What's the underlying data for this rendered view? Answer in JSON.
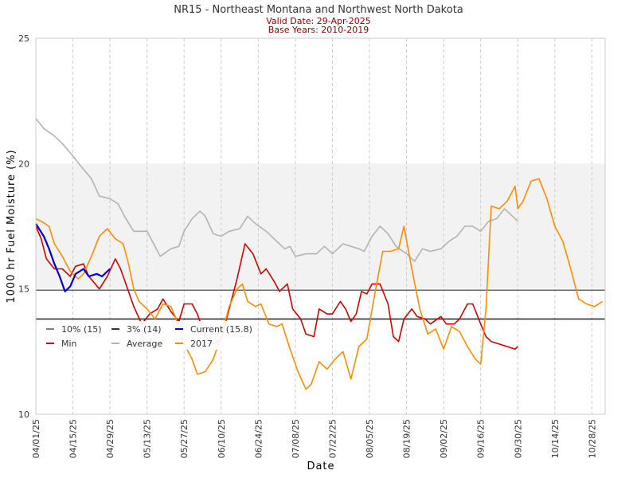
{
  "chart_data": {
    "type": "line",
    "title": "NR15 - Northeast Montana and Northwest North Dakota",
    "subtitle_valid": "Valid Date: 29-Apr-2025",
    "subtitle_base": "Base Years: 2010-2019",
    "xlabel": "Date",
    "ylabel": "1000 hr Fuel Moisture (%)",
    "ylim": [
      10,
      25
    ],
    "yticks": [
      "10",
      "15",
      "20",
      "25"
    ],
    "xlim": [
      "2025-04-01",
      "2025-11-02"
    ],
    "xticks": [
      "04/01/25",
      "04/15/25",
      "04/29/25",
      "05/13/25",
      "05/27/25",
      "06/10/25",
      "06/24/25",
      "07/08/25",
      "07/22/25",
      "08/05/25",
      "08/19/25",
      "09/02/25",
      "09/16/25",
      "09/30/25",
      "10/14/25",
      "10/28/25"
    ],
    "band": [
      15,
      20
    ],
    "band_color": "#f2f2f2",
    "reference_lines": [
      {
        "name": "10% (15)",
        "value": 14.95,
        "color": "#666666"
      },
      {
        "name": "3% (14)",
        "value": 13.8,
        "color": "#333333"
      }
    ],
    "legend": [
      {
        "name": "10% (15)",
        "color": "#808080"
      },
      {
        "name": "3% (14)",
        "color": "#333333"
      },
      {
        "name": "Current (15.8)",
        "color": "#0000cc"
      },
      {
        "name": "Min",
        "color": "#cc0000"
      },
      {
        "name": "Average",
        "color": "#b3b3b3"
      },
      {
        "name": "2017",
        "color": "#ff8c00"
      }
    ],
    "series": [
      {
        "name": "Average",
        "color": "#b3b3b3",
        "points": [
          [
            "2025-04-01",
            21.8
          ],
          [
            "2025-04-04",
            21.4
          ],
          [
            "2025-04-08",
            21.1
          ],
          [
            "2025-04-11",
            20.8
          ],
          [
            "2025-04-15",
            20.3
          ],
          [
            "2025-04-18",
            19.9
          ],
          [
            "2025-04-22",
            19.4
          ],
          [
            "2025-04-25",
            18.7
          ],
          [
            "2025-04-29",
            18.6
          ],
          [
            "2025-05-02",
            18.4
          ],
          [
            "2025-05-05",
            17.8
          ],
          [
            "2025-05-08",
            17.3
          ],
          [
            "2025-05-13",
            17.3
          ],
          [
            "2025-05-15",
            16.9
          ],
          [
            "2025-05-18",
            16.3
          ],
          [
            "2025-05-22",
            16.6
          ],
          [
            "2025-05-25",
            16.7
          ],
          [
            "2025-05-27",
            17.3
          ],
          [
            "2025-05-30",
            17.8
          ],
          [
            "2025-06-02",
            18.1
          ],
          [
            "2025-06-04",
            17.9
          ],
          [
            "2025-06-07",
            17.2
          ],
          [
            "2025-06-10",
            17.1
          ],
          [
            "2025-06-13",
            17.3
          ],
          [
            "2025-06-17",
            17.4
          ],
          [
            "2025-06-20",
            17.9
          ],
          [
            "2025-06-23",
            17.6
          ],
          [
            "2025-06-27",
            17.3
          ],
          [
            "2025-07-01",
            16.9
          ],
          [
            "2025-07-04",
            16.6
          ],
          [
            "2025-07-06",
            16.7
          ],
          [
            "2025-07-08",
            16.3
          ],
          [
            "2025-07-12",
            16.4
          ],
          [
            "2025-07-16",
            16.4
          ],
          [
            "2025-07-19",
            16.7
          ],
          [
            "2025-07-22",
            16.4
          ],
          [
            "2025-07-26",
            16.8
          ],
          [
            "2025-07-29",
            16.7
          ],
          [
            "2025-08-01",
            16.6
          ],
          [
            "2025-08-03",
            16.5
          ],
          [
            "2025-08-06",
            17.1
          ],
          [
            "2025-08-09",
            17.5
          ],
          [
            "2025-08-12",
            17.2
          ],
          [
            "2025-08-15",
            16.7
          ],
          [
            "2025-08-19",
            16.4
          ],
          [
            "2025-08-22",
            16.1
          ],
          [
            "2025-08-25",
            16.6
          ],
          [
            "2025-08-28",
            16.5
          ],
          [
            "2025-09-01",
            16.6
          ],
          [
            "2025-09-04",
            16.9
          ],
          [
            "2025-09-07",
            17.1
          ],
          [
            "2025-09-10",
            17.5
          ],
          [
            "2025-09-13",
            17.5
          ],
          [
            "2025-09-16",
            17.3
          ],
          [
            "2025-09-19",
            17.7
          ],
          [
            "2025-09-22",
            17.8
          ],
          [
            "2025-09-25",
            18.2
          ],
          [
            "2025-09-28",
            17.9
          ],
          [
            "2025-09-30",
            17.7
          ]
        ]
      },
      {
        "name": "Min",
        "color": "#cc0000",
        "points": [
          [
            "2025-04-01",
            17.5
          ],
          [
            "2025-04-03",
            17.0
          ],
          [
            "2025-04-05",
            16.2
          ],
          [
            "2025-04-08",
            15.8
          ],
          [
            "2025-04-11",
            15.8
          ],
          [
            "2025-04-14",
            15.5
          ],
          [
            "2025-04-16",
            15.9
          ],
          [
            "2025-04-19",
            16.0
          ],
          [
            "2025-04-21",
            15.5
          ],
          [
            "2025-04-25",
            15.0
          ],
          [
            "2025-04-28",
            15.5
          ],
          [
            "2025-05-01",
            16.2
          ],
          [
            "2025-05-03",
            15.8
          ],
          [
            "2025-05-05",
            15.2
          ],
          [
            "2025-05-08",
            14.3
          ],
          [
            "2025-05-11",
            13.6
          ],
          [
            "2025-05-14",
            14.0
          ],
          [
            "2025-05-17",
            14.2
          ],
          [
            "2025-05-19",
            14.6
          ],
          [
            "2025-05-22",
            14.1
          ],
          [
            "2025-05-25",
            13.7
          ],
          [
            "2025-05-27",
            14.4
          ],
          [
            "2025-05-30",
            14.4
          ],
          [
            "2025-06-01",
            14.0
          ],
          [
            "2025-06-04",
            13.1
          ],
          [
            "2025-06-07",
            12.8
          ],
          [
            "2025-06-10",
            13.0
          ],
          [
            "2025-06-13",
            14.2
          ],
          [
            "2025-06-16",
            15.4
          ],
          [
            "2025-06-19",
            16.8
          ],
          [
            "2025-06-22",
            16.4
          ],
          [
            "2025-06-25",
            15.6
          ],
          [
            "2025-06-27",
            15.8
          ],
          [
            "2025-06-30",
            15.3
          ],
          [
            "2025-07-02",
            14.9
          ],
          [
            "2025-07-05",
            15.2
          ],
          [
            "2025-07-07",
            14.2
          ],
          [
            "2025-07-10",
            13.8
          ],
          [
            "2025-07-12",
            13.2
          ],
          [
            "2025-07-15",
            13.1
          ],
          [
            "2025-07-17",
            14.2
          ],
          [
            "2025-07-20",
            14.0
          ],
          [
            "2025-07-22",
            14.0
          ],
          [
            "2025-07-25",
            14.5
          ],
          [
            "2025-07-27",
            14.2
          ],
          [
            "2025-07-29",
            13.7
          ],
          [
            "2025-07-31",
            14.0
          ],
          [
            "2025-08-02",
            14.9
          ],
          [
            "2025-08-04",
            14.8
          ],
          [
            "2025-08-06",
            15.2
          ],
          [
            "2025-08-09",
            15.2
          ],
          [
            "2025-08-12",
            14.4
          ],
          [
            "2025-08-14",
            13.1
          ],
          [
            "2025-08-16",
            12.9
          ],
          [
            "2025-08-18",
            13.8
          ],
          [
            "2025-08-21",
            14.2
          ],
          [
            "2025-08-23",
            13.9
          ],
          [
            "2025-08-26",
            13.8
          ],
          [
            "2025-08-28",
            13.6
          ],
          [
            "2025-09-01",
            13.9
          ],
          [
            "2025-09-03",
            13.6
          ],
          [
            "2025-09-06",
            13.6
          ],
          [
            "2025-09-08",
            13.8
          ],
          [
            "2025-09-11",
            14.4
          ],
          [
            "2025-09-13",
            14.4
          ],
          [
            "2025-09-16",
            13.6
          ],
          [
            "2025-09-18",
            13.1
          ],
          [
            "2025-09-20",
            12.9
          ],
          [
            "2025-09-23",
            12.8
          ],
          [
            "2025-09-26",
            12.7
          ],
          [
            "2025-09-29",
            12.6
          ],
          [
            "2025-09-30",
            12.7
          ]
        ]
      },
      {
        "name": "2017",
        "color": "#ff8c00",
        "points": [
          [
            "2025-04-01",
            17.8
          ],
          [
            "2025-04-03",
            17.7
          ],
          [
            "2025-04-06",
            17.5
          ],
          [
            "2025-04-08",
            16.8
          ],
          [
            "2025-04-11",
            16.3
          ],
          [
            "2025-04-14",
            15.7
          ],
          [
            "2025-04-17",
            15.4
          ],
          [
            "2025-04-19",
            15.6
          ],
          [
            "2025-04-22",
            16.3
          ],
          [
            "2025-04-25",
            17.1
          ],
          [
            "2025-04-28",
            17.4
          ],
          [
            "2025-05-01",
            17.0
          ],
          [
            "2025-05-04",
            16.8
          ],
          [
            "2025-05-06",
            16.0
          ],
          [
            "2025-05-08",
            15.0
          ],
          [
            "2025-05-10",
            14.5
          ],
          [
            "2025-05-13",
            14.2
          ],
          [
            "2025-05-16",
            13.8
          ],
          [
            "2025-05-19",
            14.4
          ],
          [
            "2025-05-22",
            14.3
          ],
          [
            "2025-05-24",
            13.8
          ],
          [
            "2025-05-27",
            12.8
          ],
          [
            "2025-05-30",
            12.2
          ],
          [
            "2025-06-01",
            11.6
          ],
          [
            "2025-06-04",
            11.7
          ],
          [
            "2025-06-07",
            12.2
          ],
          [
            "2025-06-10",
            13.1
          ],
          [
            "2025-06-13",
            14.3
          ],
          [
            "2025-06-16",
            15.0
          ],
          [
            "2025-06-18",
            15.2
          ],
          [
            "2025-06-20",
            14.5
          ],
          [
            "2025-06-23",
            14.3
          ],
          [
            "2025-06-25",
            14.4
          ],
          [
            "2025-06-28",
            13.6
          ],
          [
            "2025-07-01",
            13.5
          ],
          [
            "2025-07-03",
            13.6
          ],
          [
            "2025-07-06",
            12.6
          ],
          [
            "2025-07-09",
            11.7
          ],
          [
            "2025-07-12",
            11.0
          ],
          [
            "2025-07-14",
            11.2
          ],
          [
            "2025-07-17",
            12.1
          ],
          [
            "2025-07-20",
            11.8
          ],
          [
            "2025-07-23",
            12.2
          ],
          [
            "2025-07-26",
            12.5
          ],
          [
            "2025-07-29",
            11.4
          ],
          [
            "2025-08-01",
            12.7
          ],
          [
            "2025-08-04",
            13.0
          ],
          [
            "2025-08-07",
            14.8
          ],
          [
            "2025-08-10",
            16.5
          ],
          [
            "2025-08-13",
            16.5
          ],
          [
            "2025-08-16",
            16.6
          ],
          [
            "2025-08-18",
            17.5
          ],
          [
            "2025-08-21",
            15.8
          ],
          [
            "2025-08-24",
            14.2
          ],
          [
            "2025-08-27",
            13.2
          ],
          [
            "2025-08-30",
            13.4
          ],
          [
            "2025-09-02",
            12.6
          ],
          [
            "2025-09-05",
            13.5
          ],
          [
            "2025-09-08",
            13.3
          ],
          [
            "2025-09-11",
            12.7
          ],
          [
            "2025-09-14",
            12.2
          ],
          [
            "2025-09-16",
            12.0
          ],
          [
            "2025-09-18",
            14.2
          ],
          [
            "2025-09-20",
            18.3
          ],
          [
            "2025-09-23",
            18.2
          ],
          [
            "2025-09-26",
            18.5
          ],
          [
            "2025-09-29",
            19.1
          ],
          [
            "2025-09-30",
            18.2
          ],
          [
            "2025-10-02",
            18.5
          ],
          [
            "2025-10-05",
            19.3
          ],
          [
            "2025-10-08",
            19.4
          ],
          [
            "2025-10-11",
            18.6
          ],
          [
            "2025-10-14",
            17.5
          ],
          [
            "2025-10-17",
            16.9
          ],
          [
            "2025-10-20",
            15.8
          ],
          [
            "2025-10-23",
            14.6
          ],
          [
            "2025-10-26",
            14.4
          ],
          [
            "2025-10-29",
            14.3
          ],
          [
            "2025-11-01",
            14.5
          ]
        ]
      },
      {
        "name": "Current (15.8)",
        "color": "#0000cc",
        "points": [
          [
            "2025-04-01",
            17.6
          ],
          [
            "2025-04-04",
            17.1
          ],
          [
            "2025-04-06",
            16.6
          ],
          [
            "2025-04-08",
            16.0
          ],
          [
            "2025-04-10",
            15.5
          ],
          [
            "2025-04-12",
            14.9
          ],
          [
            "2025-04-14",
            15.1
          ],
          [
            "2025-04-16",
            15.6
          ],
          [
            "2025-04-19",
            15.8
          ],
          [
            "2025-04-21",
            15.5
          ],
          [
            "2025-04-24",
            15.6
          ],
          [
            "2025-04-26",
            15.5
          ],
          [
            "2025-04-29",
            15.8
          ]
        ]
      }
    ]
  }
}
